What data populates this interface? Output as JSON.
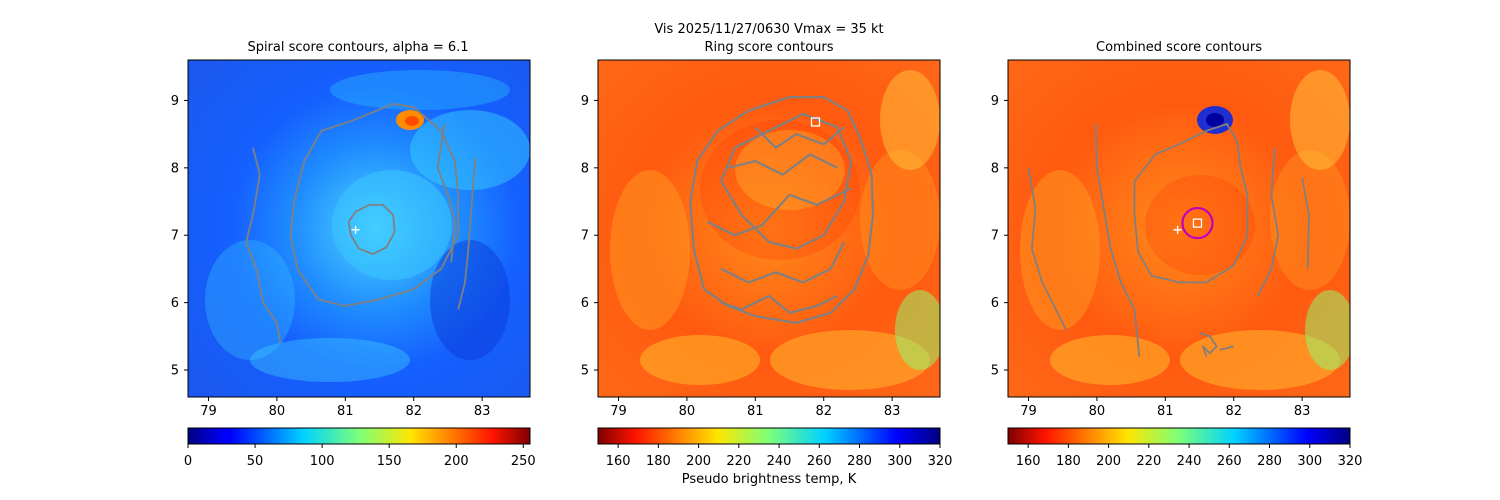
{
  "figure": {
    "suptitle_line1": "Vis  2025/11/27/0630    Vmax = 35 kt",
    "colors": {
      "contour": "#808080",
      "marker": "#ffffff",
      "circle": "#c000c0"
    }
  },
  "chart_data": [
    {
      "type": "heatmap",
      "title": "Spiral score contours, alpha =  6.1",
      "xlim": [
        78.7,
        83.7
      ],
      "ylim": [
        4.6,
        9.6
      ],
      "x_ticks": [
        "79",
        "80",
        "81",
        "82",
        "83"
      ],
      "y_ticks": [
        "5",
        "6",
        "7",
        "8",
        "9"
      ],
      "colormap": "jet",
      "colorbar": {
        "range": [
          0,
          255
        ],
        "ticks": [
          "0",
          "50",
          "100",
          "150",
          "200",
          "250"
        ],
        "label": ""
      },
      "center_marker": {
        "x": 81.15,
        "y": 7.08
      },
      "contours": [
        [
          [
            81.05,
            7.2
          ],
          [
            81.15,
            7.35
          ],
          [
            81.35,
            7.45
          ],
          [
            81.55,
            7.45
          ],
          [
            81.7,
            7.3
          ],
          [
            81.72,
            7.05
          ],
          [
            81.6,
            6.82
          ],
          [
            81.4,
            6.72
          ],
          [
            81.2,
            6.8
          ],
          [
            81.08,
            7.0
          ],
          [
            81.05,
            7.2
          ]
        ],
        [
          [
            80.4,
            8.1
          ],
          [
            80.65,
            8.55
          ],
          [
            81.1,
            8.7
          ],
          [
            81.7,
            8.95
          ],
          [
            82.0,
            8.9
          ],
          [
            82.4,
            8.55
          ],
          [
            82.6,
            8.1
          ],
          [
            82.65,
            7.6
          ],
          [
            82.65,
            7.0
          ],
          [
            82.4,
            6.5
          ],
          [
            82.0,
            6.2
          ],
          [
            81.5,
            6.05
          ],
          [
            81.0,
            5.95
          ],
          [
            80.6,
            6.05
          ],
          [
            80.3,
            6.5
          ],
          [
            80.2,
            7.0
          ],
          [
            80.25,
            7.5
          ],
          [
            80.4,
            8.1
          ]
        ],
        [
          [
            79.65,
            8.3
          ],
          [
            79.75,
            7.9
          ],
          [
            79.65,
            7.3
          ],
          [
            79.55,
            6.9
          ],
          [
            79.7,
            6.5
          ],
          [
            79.8,
            6.0
          ],
          [
            80.0,
            5.7
          ],
          [
            80.05,
            5.4
          ]
        ],
        [
          [
            82.45,
            8.65
          ],
          [
            82.35,
            8.0
          ],
          [
            82.5,
            7.6
          ],
          [
            82.6,
            7.2
          ],
          [
            82.55,
            6.6
          ]
        ],
        [
          [
            82.9,
            8.15
          ],
          [
            82.85,
            7.5
          ],
          [
            82.8,
            6.8
          ],
          [
            82.75,
            6.3
          ],
          [
            82.65,
            5.9
          ]
        ]
      ]
    },
    {
      "type": "heatmap",
      "title": "Ring score contours",
      "xlim": [
        78.7,
        83.7
      ],
      "ylim": [
        4.6,
        9.6
      ],
      "x_ticks": [
        "79",
        "80",
        "81",
        "82",
        "83"
      ],
      "y_ticks": [
        "5",
        "6",
        "7",
        "8",
        "9"
      ],
      "colormap": "jet_r",
      "colorbar": {
        "range": [
          150,
          320
        ],
        "ticks": [
          "160",
          "180",
          "200",
          "220",
          "240",
          "260",
          "280",
          "300",
          "320"
        ],
        "label": "Pseudo brightness temp, K"
      },
      "square_marker": {
        "x": 81.88,
        "y": 8.68
      },
      "contours": [
        [
          [
            80.25,
            6.2
          ],
          [
            80.1,
            6.8
          ],
          [
            80.05,
            7.5
          ],
          [
            80.15,
            8.1
          ],
          [
            80.45,
            8.55
          ],
          [
            80.9,
            8.85
          ],
          [
            81.5,
            9.05
          ],
          [
            82.0,
            9.05
          ],
          [
            82.35,
            8.85
          ],
          [
            82.55,
            8.4
          ],
          [
            82.7,
            7.9
          ],
          [
            82.72,
            7.3
          ],
          [
            82.65,
            6.7
          ],
          [
            82.45,
            6.2
          ],
          [
            82.1,
            5.85
          ],
          [
            81.6,
            5.7
          ],
          [
            81.0,
            5.8
          ],
          [
            80.6,
            5.95
          ],
          [
            80.25,
            6.2
          ]
        ],
        [
          [
            80.7,
            8.3
          ],
          [
            81.2,
            8.55
          ],
          [
            81.7,
            8.8
          ],
          [
            82.2,
            8.6
          ],
          [
            82.4,
            8.1
          ],
          [
            82.3,
            7.5
          ],
          [
            82.0,
            7.0
          ],
          [
            81.6,
            6.8
          ],
          [
            81.2,
            6.9
          ],
          [
            80.8,
            7.3
          ],
          [
            80.5,
            7.8
          ],
          [
            80.7,
            8.3
          ]
        ],
        [
          [
            80.5,
            6.5
          ],
          [
            80.9,
            6.3
          ],
          [
            81.3,
            6.45
          ],
          [
            81.7,
            6.3
          ],
          [
            82.1,
            6.5
          ],
          [
            82.3,
            6.9
          ]
        ],
        [
          [
            80.3,
            7.2
          ],
          [
            80.7,
            7.0
          ],
          [
            81.1,
            7.15
          ],
          [
            81.5,
            7.6
          ],
          [
            81.9,
            7.45
          ],
          [
            82.4,
            7.7
          ]
        ],
        [
          [
            80.6,
            8.0
          ],
          [
            81.0,
            8.1
          ],
          [
            81.4,
            7.9
          ],
          [
            81.8,
            8.2
          ],
          [
            82.2,
            8.0
          ]
        ],
        [
          [
            81.0,
            8.6
          ],
          [
            81.3,
            8.3
          ],
          [
            81.6,
            8.5
          ],
          [
            82.0,
            8.35
          ],
          [
            82.3,
            8.6
          ]
        ],
        [
          [
            80.5,
            6.0
          ],
          [
            80.8,
            5.9
          ],
          [
            81.2,
            6.1
          ],
          [
            81.5,
            5.85
          ],
          [
            81.9,
            5.95
          ],
          [
            82.2,
            6.1
          ]
        ]
      ]
    },
    {
      "type": "heatmap",
      "title": "Combined score contours",
      "xlim": [
        78.7,
        83.7
      ],
      "ylim": [
        4.6,
        9.6
      ],
      "x_ticks": [
        "79",
        "80",
        "81",
        "82",
        "83"
      ],
      "y_ticks": [
        "5",
        "6",
        "7",
        "8",
        "9"
      ],
      "colormap": "jet_r",
      "colorbar": {
        "range": [
          150,
          320
        ],
        "ticks": [
          "160",
          "180",
          "200",
          "220",
          "240",
          "260",
          "280",
          "300",
          "320"
        ],
        "label": ""
      },
      "center_marker": {
        "x": 81.18,
        "y": 7.08
      },
      "square_marker": {
        "x": 81.47,
        "y": 7.18
      },
      "circle": {
        "x": 81.47,
        "y": 7.18,
        "r": 0.22
      },
      "contours": [
        [
          [
            80.55,
            7.8
          ],
          [
            80.85,
            8.2
          ],
          [
            81.2,
            8.35
          ],
          [
            81.6,
            8.55
          ],
          [
            81.9,
            8.65
          ],
          [
            82.05,
            8.4
          ],
          [
            82.1,
            8.0
          ],
          [
            82.2,
            7.6
          ],
          [
            82.2,
            7.0
          ],
          [
            82.0,
            6.55
          ],
          [
            81.6,
            6.3
          ],
          [
            81.2,
            6.3
          ],
          [
            80.8,
            6.4
          ],
          [
            80.6,
            6.75
          ],
          [
            80.55,
            7.3
          ],
          [
            80.55,
            7.8
          ]
        ],
        [
          [
            79.0,
            8.0
          ],
          [
            79.1,
            7.4
          ],
          [
            79.05,
            6.8
          ],
          [
            79.2,
            6.3
          ],
          [
            79.45,
            5.8
          ],
          [
            79.55,
            5.6
          ]
        ],
        [
          [
            79.98,
            8.65
          ],
          [
            80.0,
            8.0
          ],
          [
            80.1,
            7.4
          ],
          [
            80.2,
            6.8
          ],
          [
            80.35,
            6.3
          ],
          [
            80.55,
            5.9
          ],
          [
            80.62,
            5.2
          ]
        ],
        [
          [
            82.6,
            8.3
          ],
          [
            82.55,
            7.6
          ],
          [
            82.65,
            7.0
          ],
          [
            82.55,
            6.5
          ],
          [
            82.35,
            6.1
          ]
        ],
        [
          [
            83.0,
            7.85
          ],
          [
            83.1,
            7.3
          ],
          [
            83.08,
            6.5
          ]
        ],
        [
          [
            81.5,
            5.55
          ],
          [
            81.65,
            5.5
          ],
          [
            81.75,
            5.35
          ],
          [
            81.65,
            5.25
          ],
          [
            81.55,
            5.35
          ],
          [
            81.6,
            5.2
          ]
        ],
        [
          [
            81.8,
            5.3
          ],
          [
            82.0,
            5.35
          ]
        ]
      ]
    }
  ]
}
